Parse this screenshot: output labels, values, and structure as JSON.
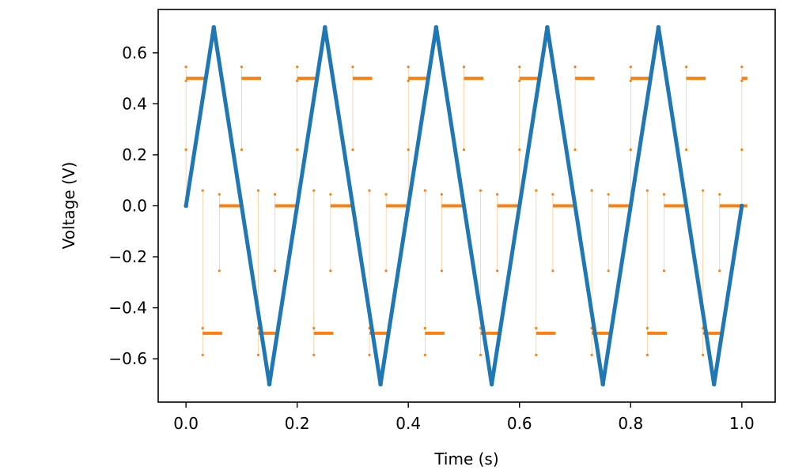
{
  "chart_data": {
    "type": "line",
    "xlabel": "Time (s)",
    "ylabel": "Voltage (V)",
    "xlim": [
      -0.05,
      1.06
    ],
    "ylim": [
      -0.77,
      0.77
    ],
    "x_ticks": [
      0.0,
      0.2,
      0.4,
      0.6,
      0.8,
      1.0
    ],
    "x_tick_labels": [
      "0.0",
      "0.2",
      "0.4",
      "0.6",
      "0.8",
      "1.0"
    ],
    "y_ticks": [
      0.6,
      0.4,
      0.2,
      0.0,
      -0.2,
      -0.4,
      -0.6
    ],
    "y_tick_labels": [
      "0.6",
      "0.4",
      "0.2",
      "0.0",
      "−0.2",
      "−0.4",
      "−0.6"
    ],
    "grid": false,
    "series": [
      {
        "color": "#1f77b4",
        "style": "line-with-dense-markers",
        "x": [
          0.0,
          0.05,
          0.15,
          0.25,
          0.35,
          0.45,
          0.55,
          0.65,
          0.75,
          0.85,
          0.95,
          1.0
        ],
        "y": [
          0.0,
          0.7,
          -0.7,
          0.7,
          -0.7,
          0.7,
          -0.7,
          0.7,
          -0.7,
          0.7,
          -0.7,
          0.0
        ]
      },
      {
        "color": "#ff7f0e",
        "style": "stepped-markers",
        "period": 0.2,
        "segments": [
          {
            "t0": 0.0,
            "t1": 0.035,
            "y": 0.5
          },
          {
            "t0": 0.03,
            "t1": 0.065,
            "y": -0.5
          },
          {
            "t0": 0.06,
            "t1": 0.1,
            "y": 0.0
          },
          {
            "t0": 0.1,
            "t1": 0.135,
            "y": 0.5
          },
          {
            "t0": 0.13,
            "t1": 0.165,
            "y": -0.5
          },
          {
            "t0": 0.16,
            "t1": 0.2,
            "y": 0.0
          }
        ],
        "spikes": [
          {
            "dt": 0.0,
            "y": [
              0.0,
              0.22,
              0.49,
              0.545
            ]
          },
          {
            "dt": 0.03,
            "y": [
              0.06,
              -0.48,
              -0.585
            ]
          },
          {
            "dt": 0.06,
            "y": [
              0.045,
              -0.255
            ]
          },
          {
            "dt": 0.1,
            "y": [
              0.22,
              0.545
            ]
          },
          {
            "dt": 0.13,
            "y": [
              0.06,
              -0.48,
              -0.585
            ]
          },
          {
            "dt": 0.16,
            "y": [
              0.045,
              -0.255
            ]
          }
        ],
        "t_end": 1.01
      }
    ]
  }
}
